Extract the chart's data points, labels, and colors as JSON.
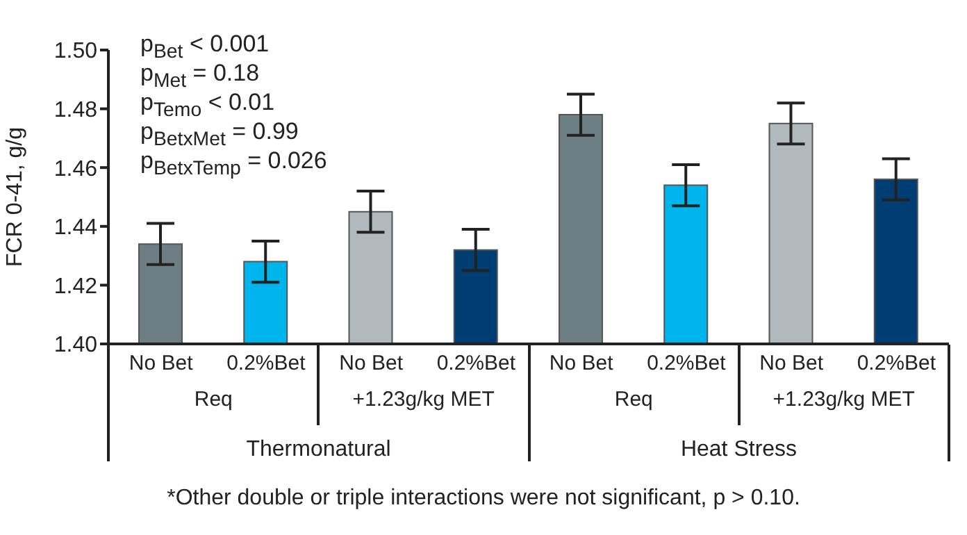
{
  "chart_data": {
    "type": "bar",
    "ylabel": "FCR 0-41, g/g",
    "categories": [
      "No Bet",
      "0.2%Bet",
      "No Bet",
      "0.2%Bet",
      "No Bet",
      "0.2%Bet",
      "No Bet",
      "0.2%Bet"
    ],
    "values": [
      1.434,
      1.428,
      1.445,
      1.432,
      1.478,
      1.454,
      1.475,
      1.456
    ],
    "errors": [
      0.007,
      0.007,
      0.007,
      0.007,
      0.007,
      0.007,
      0.007,
      0.007
    ],
    "colors": [
      "#6e7f84",
      "#00b5ec",
      "#b2b9bd",
      "#003d73",
      "#6e7f84",
      "#00b5ec",
      "#b2b9bd",
      "#003d73"
    ],
    "ylim": [
      1.4,
      1.5
    ],
    "yticks": [
      {
        "value": 1.4,
        "label": "1.40"
      },
      {
        "value": 1.42,
        "label": "1.42"
      },
      {
        "value": 1.44,
        "label": "1.44"
      },
      {
        "value": 1.46,
        "label": "1.46"
      },
      {
        "value": 1.48,
        "label": "1.48"
      },
      {
        "value": 1.5,
        "label": "1.50"
      }
    ],
    "grid": false,
    "legend": false,
    "annotations": [
      "p$_{Bet}$ < 0.001",
      "p$_{Met}$ = 0.18",
      "p$_{Temo}$ < 0.01",
      "p$_{BetxMet}$ = 0.99",
      "p$_{BetxTemp}$ = 0.026",
      "Req",
      "+1.23g/kg MET",
      "Req",
      "+1.23g/kg MET",
      "Thermonatural",
      "Heat Stress",
      "*Other double or triple interactions were not significant, p > 0.10."
    ]
  }
}
